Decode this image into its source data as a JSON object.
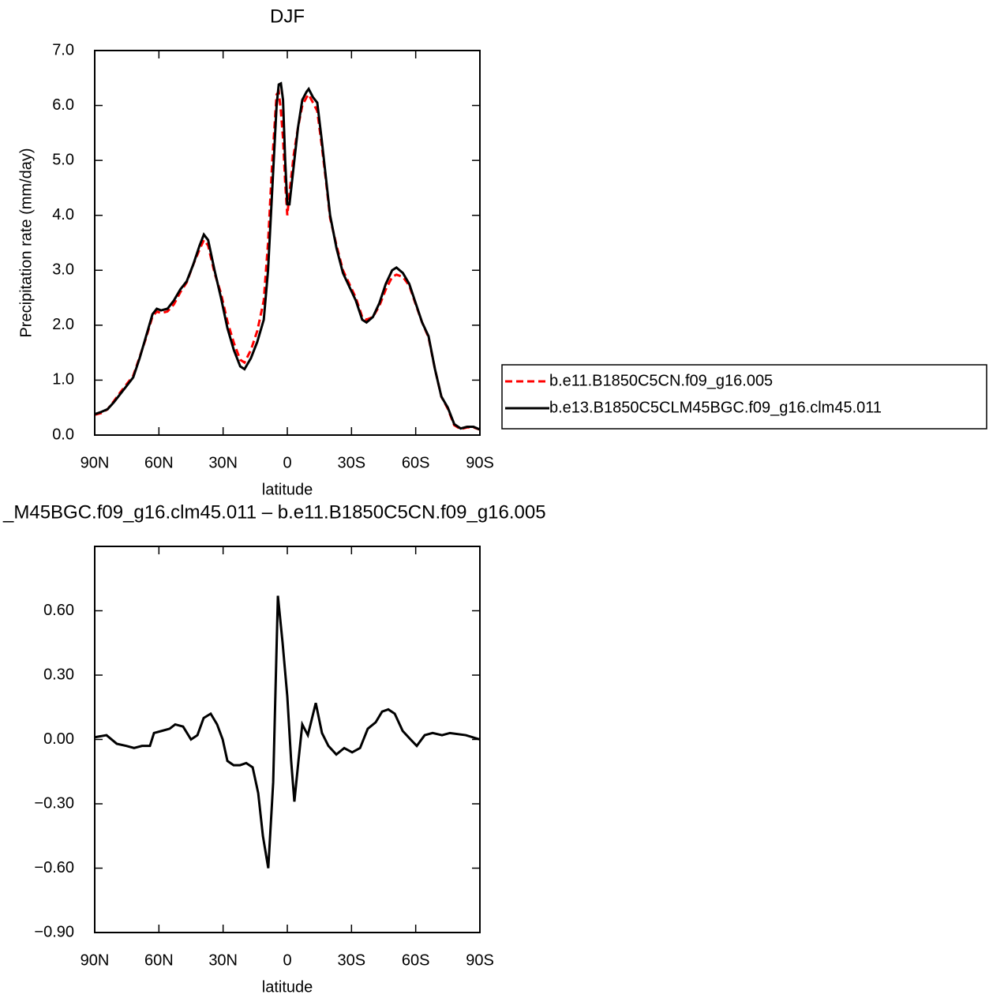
{
  "chart_data": [
    {
      "type": "line",
      "title": "DJF",
      "xlabel": "latitude",
      "ylabel": "Precipitation rate (mm/day)",
      "x": [
        90,
        87,
        84,
        81,
        78,
        75,
        72,
        69,
        66,
        63,
        61,
        59,
        56,
        53,
        50,
        47,
        44,
        41,
        39,
        37,
        34,
        31,
        28,
        25,
        22,
        20,
        17,
        14,
        11,
        9,
        7,
        5,
        4,
        3,
        2,
        1,
        0,
        -1,
        -3,
        -5,
        -7,
        -9,
        -10,
        -12,
        -14,
        -16,
        -18,
        -20,
        -23,
        -26,
        -29,
        -32,
        -35,
        -37,
        -40,
        -43,
        -46,
        -49,
        -51,
        -54,
        -57,
        -60,
        -63,
        -66,
        -69,
        -72,
        -75,
        -78,
        -81,
        -84,
        -87,
        -90
      ],
      "series": [
        {
          "name": "b.e11.B1850C5CN.f09_g16.005",
          "color": "#ff0000",
          "style": "dashed",
          "values": [
            0.37,
            0.4,
            0.47,
            0.62,
            0.78,
            0.93,
            1.08,
            1.42,
            1.77,
            2.16,
            2.25,
            2.22,
            2.25,
            2.38,
            2.6,
            2.78,
            3.1,
            3.38,
            3.55,
            3.45,
            2.95,
            2.58,
            2.07,
            1.68,
            1.37,
            1.32,
            1.55,
            1.9,
            2.45,
            3.5,
            5.0,
            6.2,
            6.25,
            5.9,
            5.4,
            4.6,
            4.0,
            4.4,
            5.1,
            5.6,
            6.0,
            6.15,
            6.2,
            6.05,
            5.9,
            5.3,
            4.65,
            3.95,
            3.45,
            3.0,
            2.75,
            2.5,
            2.15,
            2.1,
            2.15,
            2.35,
            2.65,
            2.88,
            2.92,
            2.88,
            2.72,
            2.38,
            2.05,
            1.78,
            1.2,
            0.7,
            0.48,
            0.18,
            0.11,
            0.14,
            0.14,
            0.1
          ]
        },
        {
          "name": "b.e13.B1850C5CLM45BGC.f09_g16.clm45.011",
          "color": "#000000",
          "style": "solid",
          "values": [
            0.38,
            0.42,
            0.47,
            0.6,
            0.75,
            0.9,
            1.05,
            1.4,
            1.8,
            2.2,
            2.3,
            2.27,
            2.3,
            2.45,
            2.65,
            2.8,
            3.1,
            3.45,
            3.65,
            3.55,
            3.0,
            2.5,
            1.95,
            1.55,
            1.25,
            1.2,
            1.4,
            1.7,
            2.1,
            3.0,
            4.5,
            6.0,
            6.38,
            6.4,
            6.1,
            5.0,
            4.2,
            4.2,
            4.9,
            5.6,
            6.1,
            6.25,
            6.3,
            6.15,
            6.05,
            5.4,
            4.7,
            4.0,
            3.4,
            2.95,
            2.7,
            2.45,
            2.1,
            2.05,
            2.15,
            2.4,
            2.75,
            3.0,
            3.05,
            2.95,
            2.75,
            2.4,
            2.05,
            1.8,
            1.2,
            0.7,
            0.5,
            0.2,
            0.12,
            0.15,
            0.15,
            0.1
          ]
        }
      ],
      "xlim": [
        90,
        -90
      ],
      "xticks": [
        {
          "value": 90,
          "label": "90N"
        },
        {
          "value": 60,
          "label": "60N"
        },
        {
          "value": 30,
          "label": "30N"
        },
        0,
        {
          "value": -30,
          "label": "30S"
        },
        {
          "value": -60,
          "label": "60S"
        },
        {
          "value": -90,
          "label": "90S"
        }
      ],
      "ylim": [
        0,
        7
      ],
      "yticks": [
        {
          "value": 0,
          "label": "0.0"
        },
        {
          "value": 1,
          "label": "1.0"
        },
        {
          "value": 2,
          "label": "2.0"
        },
        {
          "value": 3,
          "label": "3.0"
        },
        {
          "value": 4,
          "label": "4.0"
        },
        {
          "value": 5,
          "label": "5.0"
        },
        {
          "value": 6,
          "label": "6.0"
        },
        {
          "value": 7,
          "label": "7.0"
        }
      ],
      "legend": "right"
    },
    {
      "type": "line",
      "title": "_M45BGC.f09_g16.clm45.011 – b.e11.B1850C5CN.f09_g16.005",
      "xlabel": "latitude",
      "x": [
        90,
        84.5,
        79.7,
        75.2,
        71.6,
        67.9,
        64.2,
        62.3,
        58.6,
        55,
        52.4,
        48.7,
        45,
        42,
        39.1,
        35.8,
        32.8,
        30.2,
        28,
        25.1,
        22.1,
        19.2,
        16.2,
        13.6,
        11.4,
        8.9,
        6.6,
        4.4,
        2.2,
        0,
        -1.8,
        -3.3,
        -5.2,
        -7,
        -9.6,
        -13.3,
        -16.2,
        -19.2,
        -22.9,
        -26.6,
        -30.3,
        -34,
        -37.6,
        -41.3,
        -44.3,
        -47.2,
        -50.2,
        -53.9,
        -57.6,
        -60.5,
        -64.2,
        -67.9,
        -72.3,
        -76,
        -83.4,
        -90
      ],
      "series": [
        {
          "color": "#000000",
          "style": "solid",
          "values": [
            0.01,
            0.02,
            -0.02,
            -0.03,
            -0.04,
            -0.03,
            -0.03,
            0.03,
            0.04,
            0.05,
            0.07,
            0.06,
            0.0,
            0.02,
            0.1,
            0.12,
            0.07,
            0.0,
            -0.1,
            -0.12,
            -0.12,
            -0.11,
            -0.13,
            -0.25,
            -0.45,
            -0.6,
            -0.2,
            0.67,
            0.45,
            0.2,
            -0.1,
            -0.29,
            -0.1,
            0.07,
            0.02,
            0.17,
            0.03,
            -0.03,
            -0.07,
            -0.04,
            -0.06,
            -0.04,
            0.05,
            0.08,
            0.13,
            0.14,
            0.12,
            0.04,
            0.0,
            -0.03,
            0.02,
            0.03,
            0.02,
            0.03,
            0.02,
            0.0
          ]
        }
      ],
      "xlim": [
        90,
        -90
      ],
      "xticks": [
        {
          "value": 90,
          "label": "90N"
        },
        {
          "value": 60,
          "label": "60N"
        },
        {
          "value": 30,
          "label": "30N"
        },
        0,
        {
          "value": -30,
          "label": "30S"
        },
        {
          "value": -60,
          "label": "60S"
        },
        {
          "value": -90,
          "label": "90S"
        }
      ],
      "ylim": [
        -0.9,
        0.9
      ],
      "yticks": [
        {
          "value": -0.9,
          "label": "−0.90"
        },
        {
          "value": -0.6,
          "label": "−0.60"
        },
        {
          "value": -0.3,
          "label": "−0.30"
        },
        {
          "value": 0,
          "label": "0.00"
        },
        {
          "value": 0.3,
          "label": "0.30"
        },
        {
          "value": 0.6,
          "label": "0.60"
        }
      ]
    }
  ]
}
